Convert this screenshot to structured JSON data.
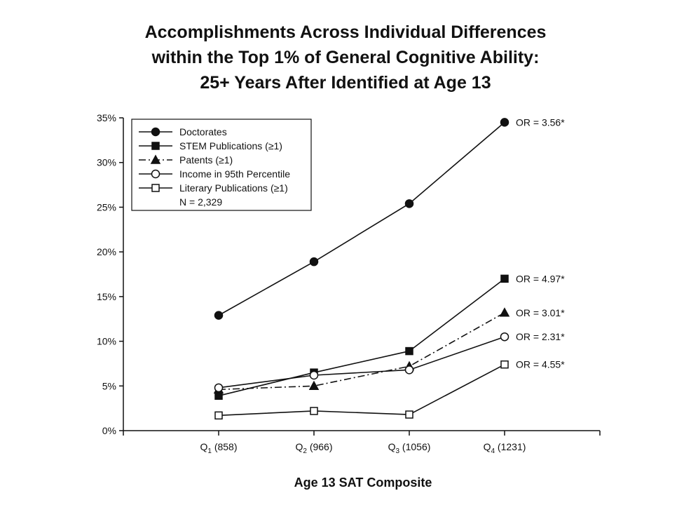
{
  "chart_data": {
    "type": "line",
    "title_lines": [
      "Accomplishments Across Individual Differences",
      "within the Top 1% of General Cognitive Ability:",
      "25+ Years After Identified at Age 13"
    ],
    "xlabel": "Age 13 SAT Composite",
    "ylabel": "",
    "ylim": [
      0,
      35
    ],
    "yticks": [
      0,
      5,
      10,
      15,
      20,
      25,
      30,
      35
    ],
    "ytick_labels": [
      "0%",
      "5%",
      "10%",
      "15%",
      "20%",
      "25%",
      "30%",
      "35%"
    ],
    "categories": [
      {
        "q": "Q",
        "sub": "1",
        "val": " (858)"
      },
      {
        "q": "Q",
        "sub": "2",
        "val": " (966)"
      },
      {
        "q": "Q",
        "sub": "3",
        "val": " (1056)"
      },
      {
        "q": "Q",
        "sub": "4",
        "val": " (1231)"
      }
    ],
    "series": [
      {
        "name": "Doctorates",
        "marker": "filled-circle",
        "dash": "solid",
        "values": [
          12.9,
          18.9,
          25.4,
          34.5
        ],
        "or": "OR = 3.56*"
      },
      {
        "name": "STEM Publications (≥1)",
        "marker": "filled-square",
        "dash": "solid",
        "values": [
          3.9,
          6.5,
          8.9,
          17.0
        ],
        "or": "OR = 4.97*"
      },
      {
        "name": "Patents (≥1)",
        "marker": "filled-triangle",
        "dash": "dashdot",
        "values": [
          4.6,
          5.0,
          7.2,
          13.2
        ],
        "or": "OR = 3.01*"
      },
      {
        "name": "Income in 95th Percentile",
        "marker": "open-circle",
        "dash": "solid",
        "values": [
          4.8,
          6.2,
          6.8,
          10.5
        ],
        "or": "OR = 2.31*"
      },
      {
        "name": "Literary Publications (≥1)",
        "marker": "open-square",
        "dash": "solid",
        "values": [
          1.7,
          2.2,
          1.8,
          7.4
        ],
        "or": "OR = 4.55*"
      }
    ],
    "legend_note": "N = 2,329",
    "legend_position": "top-left"
  }
}
